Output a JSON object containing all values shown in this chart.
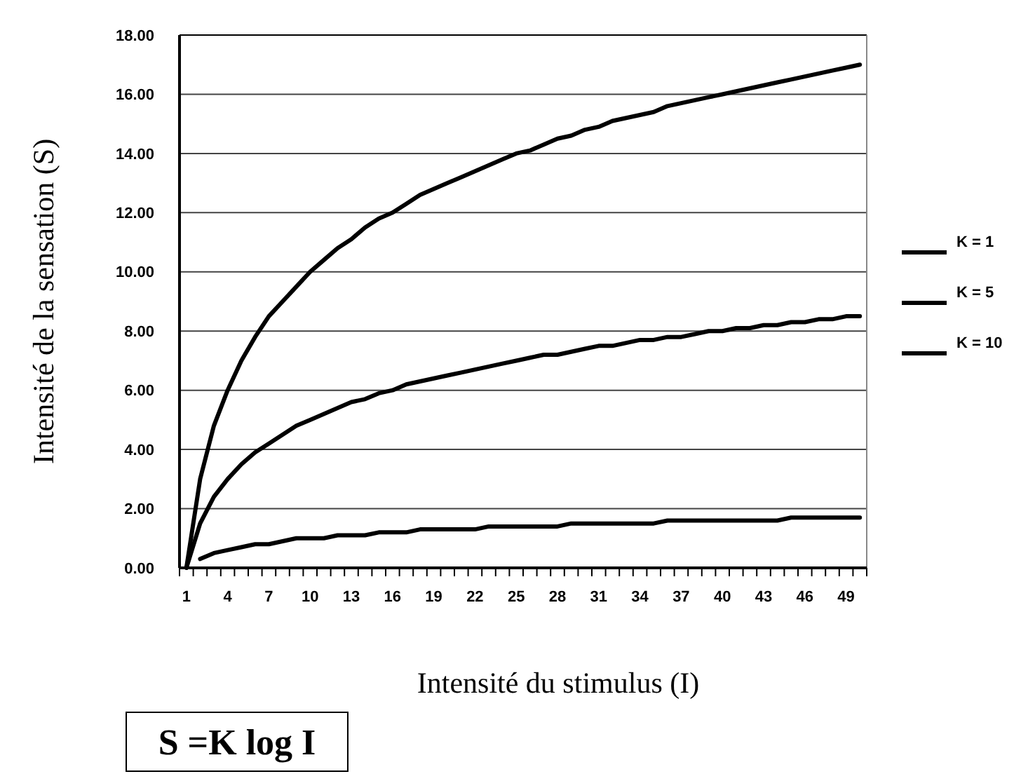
{
  "chart_data": {
    "type": "line",
    "xlabel": "Intensité du stimulus (I)",
    "ylabel": "Intensité de la sensation (S)",
    "categories": [
      "1",
      null,
      null,
      "4",
      null,
      null,
      "7",
      null,
      null,
      "10",
      null,
      null,
      "13",
      null,
      null,
      "16",
      null,
      null,
      "19",
      null,
      null,
      "22",
      null,
      null,
      "25",
      null,
      null,
      "28",
      null,
      null,
      "31",
      null,
      null,
      "34",
      null,
      null,
      "37",
      null,
      null,
      "40",
      null,
      null,
      "43",
      null,
      null,
      "46",
      null,
      null,
      "49",
      null
    ],
    "series": [
      {
        "name": "K = 1",
        "color": "#000000",
        "values": [
          null,
          0.3,
          0.5,
          0.6,
          0.7,
          0.8,
          0.8,
          0.9,
          1.0,
          1.0,
          1.0,
          1.1,
          1.1,
          1.1,
          1.2,
          1.2,
          1.2,
          1.3,
          1.3,
          1.3,
          1.3,
          1.3,
          1.4,
          1.4,
          1.4,
          1.4,
          1.4,
          1.4,
          1.5,
          1.5,
          1.5,
          1.5,
          1.5,
          1.5,
          1.5,
          1.6,
          1.6,
          1.6,
          1.6,
          1.6,
          1.6,
          1.6,
          1.6,
          1.6,
          1.7,
          1.7,
          1.7,
          1.7,
          1.7,
          1.7
        ]
      },
      {
        "name": "K = 5",
        "color": "#000000",
        "values": [
          0,
          1.5,
          2.4,
          3.0,
          3.5,
          3.9,
          4.2,
          4.5,
          4.8,
          5.0,
          5.2,
          5.4,
          5.6,
          5.7,
          5.9,
          6.0,
          6.2,
          6.3,
          6.4,
          6.5,
          6.6,
          6.7,
          6.8,
          6.9,
          7.0,
          7.1,
          7.2,
          7.2,
          7.3,
          7.4,
          7.5,
          7.5,
          7.6,
          7.7,
          7.7,
          7.8,
          7.8,
          7.9,
          8.0,
          8.0,
          8.1,
          8.1,
          8.2,
          8.2,
          8.3,
          8.3,
          8.4,
          8.4,
          8.5,
          8.5
        ]
      },
      {
        "name": "K = 10",
        "color": "#000000",
        "values": [
          0,
          3.0,
          4.8,
          6.0,
          7.0,
          7.8,
          8.5,
          9.0,
          9.5,
          10.0,
          10.4,
          10.8,
          11.1,
          11.5,
          11.8,
          12.0,
          12.3,
          12.6,
          12.8,
          13.0,
          13.2,
          13.4,
          13.6,
          13.8,
          14.0,
          14.1,
          14.3,
          14.5,
          14.6,
          14.8,
          14.9,
          15.1,
          15.2,
          15.3,
          15.4,
          15.6,
          15.7,
          15.8,
          15.9,
          16.0,
          16.1,
          16.2,
          16.3,
          16.4,
          16.5,
          16.6,
          16.7,
          16.8,
          16.9,
          17.0
        ]
      }
    ],
    "ylim": [
      0,
      18
    ],
    "yticks": [
      {
        "value": 0,
        "label": "0.00"
      },
      {
        "value": 2,
        "label": "2.00"
      },
      {
        "value": 4,
        "label": "4.00"
      },
      {
        "value": 6,
        "label": "6.00"
      },
      {
        "value": 8,
        "label": "8.00"
      },
      {
        "value": 10,
        "label": "10.00"
      },
      {
        "value": 12,
        "label": "12.00"
      },
      {
        "value": 14,
        "label": "14.00"
      },
      {
        "value": 16,
        "label": "16.00"
      },
      {
        "value": 18,
        "label": "18.00"
      }
    ],
    "grid": "y",
    "legend": "right",
    "marker": "none",
    "line_style": "solid",
    "annotations": [
      "S =K log I"
    ]
  }
}
